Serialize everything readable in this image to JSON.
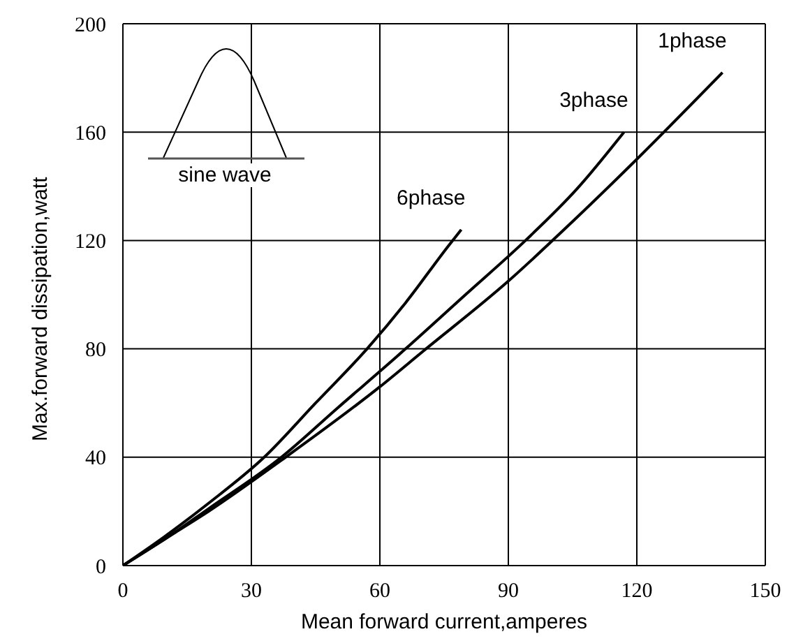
{
  "chart_data": {
    "type": "line",
    "xlabel": "Mean forward current,amperes",
    "ylabel": "Max.forward dissipation,watt",
    "xlim": [
      0,
      150
    ],
    "xticks": [
      0,
      30,
      60,
      90,
      120,
      150
    ],
    "ylim": [
      0,
      200
    ],
    "yticks": [
      0,
      40,
      80,
      120,
      160,
      200
    ],
    "grid": true,
    "legend": false,
    "marker": "none",
    "line_style": "solid",
    "annotations": [
      "sine wave"
    ],
    "series": [
      {
        "name": "6phase",
        "color": "#000000",
        "x": [
          0,
          10,
          20,
          33,
          45,
          57,
          66,
          76,
          79
        ],
        "values": [
          0,
          11,
          23,
          40,
          60,
          80,
          97,
          118,
          124
        ]
      },
      {
        "name": "3phase",
        "color": "#000000",
        "x": [
          0,
          10,
          20,
          37,
          50,
          66,
          80,
          94,
          106,
          117
        ],
        "values": [
          0,
          10,
          21,
          40,
          58,
          80,
          100,
          120,
          139,
          160
        ]
      },
      {
        "name": "1phase",
        "color": "#000000",
        "x": [
          0,
          10,
          20,
          38,
          60,
          70,
          90,
          105,
          120,
          140
        ],
        "values": [
          0,
          10,
          20,
          40,
          66,
          79,
          105,
          127,
          150,
          182
        ]
      }
    ]
  }
}
